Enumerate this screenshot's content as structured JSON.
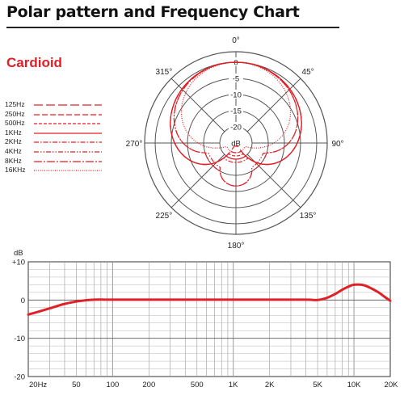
{
  "page": {
    "title": "Polar pattern and Frequency Chart",
    "subtitle": "Cardioid"
  },
  "colors": {
    "curve": "#e02027",
    "grid": "#555555",
    "text": "#222222"
  },
  "chart_data": [
    {
      "type": "polar",
      "angle_labels": [
        "0°",
        "45°",
        "90°",
        "135°",
        "180°",
        "225°",
        "270°",
        "315°"
      ],
      "ring_labels": [
        "0",
        "-5",
        "-10",
        "-15",
        "-20",
        "dB"
      ],
      "rlim": [
        -25,
        0
      ],
      "grid": true,
      "series": [
        {
          "name": "125Hz",
          "dash": "long",
          "pattern": "cardioid",
          "dB_at_180": -24
        },
        {
          "name": "250Hz",
          "dash": "medium",
          "pattern": "cardioid",
          "dB_at_180": -22
        },
        {
          "name": "500Hz",
          "dash": "short",
          "pattern": "cardioid",
          "dB_at_180": -21
        },
        {
          "name": "1KHz",
          "dash": "solid",
          "pattern": "cardioid",
          "dB_at_180": -20
        },
        {
          "name": "2KHz",
          "dash": "dash-dot",
          "pattern": "cardioid",
          "dB_at_180": -19
        },
        {
          "name": "4KHz",
          "dash": "dash-dot-dot",
          "pattern": "supercardioid",
          "dB_at_180": -16
        },
        {
          "name": "8KHz",
          "dash": "dash-dot-long",
          "pattern": "supercardioid",
          "dB_at_180": -15
        },
        {
          "name": "16KHz",
          "dash": "dotted",
          "pattern": "narrow",
          "dB_at_180": -22
        }
      ]
    },
    {
      "type": "line",
      "ylabel": "dB",
      "ylim": [
        -20,
        10
      ],
      "y_ticks": [
        "+10",
        "0",
        "-10",
        "-20"
      ],
      "y_tick_values": [
        10,
        0,
        -10,
        -20
      ],
      "x_scale": "log",
      "xlim": [
        20,
        20000
      ],
      "x_tick_labels": [
        "20Hz",
        "50",
        "100",
        "200",
        "500",
        "1K",
        "2K",
        "5K",
        "10K",
        "20K"
      ],
      "x_tick_values": [
        20,
        50,
        100,
        200,
        500,
        1000,
        2000,
        5000,
        10000,
        20000
      ],
      "grid": true,
      "series": [
        {
          "name": "",
          "x": [
            20,
            30,
            40,
            55,
            70,
            100,
            200,
            500,
            1000,
            2000,
            4000,
            5000,
            6000,
            7000,
            8000,
            9000,
            10000,
            12000,
            14000,
            16000,
            18000,
            20000
          ],
          "y": [
            -3.8,
            -2.2,
            -1.0,
            -0.2,
            0.1,
            0.1,
            0.1,
            0.1,
            0.1,
            0.1,
            0.1,
            0.0,
            0.6,
            1.6,
            2.7,
            3.5,
            4.0,
            3.9,
            3.0,
            2.0,
            0.8,
            -0.2
          ]
        }
      ]
    }
  ]
}
